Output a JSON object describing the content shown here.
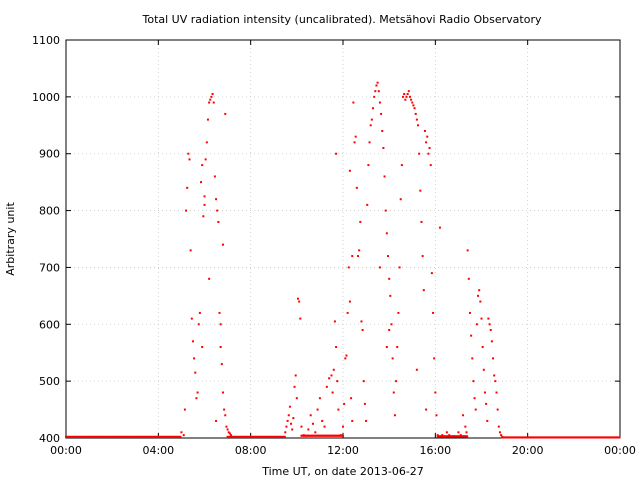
{
  "chart_data": {
    "type": "scatter",
    "title": "Total UV radiation intensity (uncalibrated). Metsähovi Radio Observatory",
    "xlabel": "Time UT, on date 2013-06-27",
    "ylabel": "Arbitrary unit",
    "xlim": [
      0,
      24
    ],
    "ylim": [
      400,
      1100
    ],
    "x_ticks": [
      0,
      4,
      8,
      12,
      16,
      20,
      24
    ],
    "x_tick_labels": [
      "00:00",
      "04:00",
      "08:00",
      "12:00",
      "16:00",
      "20:00",
      "00:00"
    ],
    "y_ticks": [
      400,
      500,
      600,
      700,
      800,
      900,
      1000,
      1100
    ],
    "y_tick_labels": [
      "400",
      "500",
      "600",
      "700",
      "800",
      "900",
      "1000",
      "1100"
    ],
    "grid": true,
    "marker_color": "#ff0000",
    "series": [
      {
        "points": [
          [
            5.0,
            410
          ],
          [
            5.1,
            405
          ],
          [
            5.15,
            450
          ],
          [
            5.2,
            800
          ],
          [
            5.25,
            840
          ],
          [
            5.3,
            900
          ],
          [
            5.35,
            890
          ],
          [
            5.4,
            730
          ],
          [
            5.45,
            610
          ],
          [
            5.5,
            570
          ],
          [
            5.55,
            540
          ],
          [
            5.6,
            515
          ],
          [
            5.65,
            470
          ],
          [
            5.7,
            480
          ],
          [
            5.75,
            600
          ],
          [
            5.8,
            620
          ],
          [
            5.85,
            850
          ],
          [
            5.9,
            880
          ],
          [
            5.95,
            790
          ],
          [
            6.0,
            810
          ],
          [
            6.05,
            890
          ],
          [
            6.1,
            920
          ],
          [
            6.15,
            960
          ],
          [
            6.2,
            990
          ],
          [
            6.25,
            995
          ],
          [
            6.3,
            1000
          ],
          [
            6.35,
            1005
          ],
          [
            6.4,
            990
          ],
          [
            6.45,
            860
          ],
          [
            6.5,
            820
          ],
          [
            6.55,
            800
          ],
          [
            6.6,
            780
          ],
          [
            6.65,
            620
          ],
          [
            6.7,
            560
          ],
          [
            6.75,
            530
          ],
          [
            6.8,
            480
          ],
          [
            6.85,
            450
          ],
          [
            6.9,
            440
          ],
          [
            6.95,
            420
          ],
          [
            7.0,
            415
          ],
          [
            7.05,
            410
          ],
          [
            7.1,
            408
          ],
          [
            7.15,
            405
          ],
          [
            6.2,
            680
          ],
          [
            6.0,
            825
          ],
          [
            5.9,
            560
          ],
          [
            6.8,
            740
          ],
          [
            6.9,
            970
          ],
          [
            6.7,
            600
          ],
          [
            6.5,
            430
          ],
          [
            9.5,
            410
          ],
          [
            9.55,
            420
          ],
          [
            9.6,
            430
          ],
          [
            9.65,
            440
          ],
          [
            9.7,
            455
          ],
          [
            9.75,
            425
          ],
          [
            9.8,
            415
          ],
          [
            9.85,
            435
          ],
          [
            9.9,
            490
          ],
          [
            9.95,
            510
          ],
          [
            10.0,
            470
          ],
          [
            10.05,
            645
          ],
          [
            10.1,
            640
          ],
          [
            10.15,
            610
          ],
          [
            10.2,
            420
          ],
          [
            10.3,
            405
          ],
          [
            10.5,
            415
          ],
          [
            10.6,
            440
          ],
          [
            10.7,
            425
          ],
          [
            10.8,
            410
          ],
          [
            10.9,
            450
          ],
          [
            11.0,
            470
          ],
          [
            11.1,
            430
          ],
          [
            11.2,
            420
          ],
          [
            11.3,
            490
          ],
          [
            11.4,
            505
          ],
          [
            11.5,
            510
          ],
          [
            11.55,
            480
          ],
          [
            11.6,
            520
          ],
          [
            11.65,
            605
          ],
          [
            11.7,
            560
          ],
          [
            11.75,
            500
          ],
          [
            11.8,
            450
          ],
          [
            11.9,
            405
          ],
          [
            12.0,
            420
          ],
          [
            12.05,
            460
          ],
          [
            12.1,
            540
          ],
          [
            12.15,
            545
          ],
          [
            12.2,
            620
          ],
          [
            12.25,
            700
          ],
          [
            12.3,
            640
          ],
          [
            12.35,
            470
          ],
          [
            12.4,
            430
          ],
          [
            12.45,
            990
          ],
          [
            12.5,
            920
          ],
          [
            12.55,
            930
          ],
          [
            12.6,
            840
          ],
          [
            12.65,
            720
          ],
          [
            12.7,
            730
          ],
          [
            12.75,
            780
          ],
          [
            12.8,
            605
          ],
          [
            12.85,
            590
          ],
          [
            12.9,
            500
          ],
          [
            12.95,
            460
          ],
          [
            13.0,
            430
          ],
          [
            13.05,
            810
          ],
          [
            13.1,
            880
          ],
          [
            13.15,
            920
          ],
          [
            13.2,
            950
          ],
          [
            13.25,
            960
          ],
          [
            13.3,
            980
          ],
          [
            13.35,
            1000
          ],
          [
            13.4,
            1010
          ],
          [
            13.45,
            1020
          ],
          [
            13.5,
            1025
          ],
          [
            13.55,
            1010
          ],
          [
            13.6,
            990
          ],
          [
            13.65,
            970
          ],
          [
            13.7,
            940
          ],
          [
            13.75,
            910
          ],
          [
            13.8,
            860
          ],
          [
            13.85,
            800
          ],
          [
            13.9,
            760
          ],
          [
            13.95,
            720
          ],
          [
            14.0,
            680
          ],
          [
            14.05,
            650
          ],
          [
            14.1,
            600
          ],
          [
            14.15,
            540
          ],
          [
            14.2,
            480
          ],
          [
            14.25,
            440
          ],
          [
            14.3,
            500
          ],
          [
            14.35,
            560
          ],
          [
            14.4,
            620
          ],
          [
            14.45,
            700
          ],
          [
            14.5,
            820
          ],
          [
            14.55,
            880
          ],
          [
            14.6,
            1000
          ],
          [
            14.65,
            1005
          ],
          [
            14.7,
            995
          ],
          [
            14.75,
            1000
          ],
          [
            14.8,
            1005
          ],
          [
            14.85,
            1010
          ],
          [
            14.9,
            1000
          ],
          [
            14.95,
            995
          ],
          [
            15.0,
            990
          ],
          [
            15.05,
            985
          ],
          [
            15.1,
            980
          ],
          [
            15.15,
            970
          ],
          [
            15.2,
            960
          ],
          [
            15.25,
            950
          ],
          [
            15.3,
            900
          ],
          [
            15.35,
            835
          ],
          [
            15.4,
            780
          ],
          [
            15.45,
            720
          ],
          [
            15.5,
            660
          ],
          [
            15.55,
            940
          ],
          [
            15.6,
            920
          ],
          [
            15.65,
            930
          ],
          [
            15.7,
            900
          ],
          [
            15.75,
            910
          ],
          [
            15.8,
            880
          ],
          [
            15.85,
            690
          ],
          [
            15.9,
            620
          ],
          [
            15.95,
            540
          ],
          [
            16.0,
            480
          ],
          [
            16.05,
            440
          ],
          [
            16.1,
            405
          ],
          [
            16.2,
            770
          ],
          [
            15.6,
            450
          ],
          [
            15.2,
            520
          ],
          [
            14.0,
            590
          ],
          [
            13.6,
            700
          ],
          [
            13.9,
            560
          ],
          [
            12.4,
            720
          ],
          [
            12.3,
            870
          ],
          [
            11.7,
            900
          ],
          [
            16.3,
            405
          ],
          [
            16.4,
            402
          ],
          [
            16.5,
            410
          ],
          [
            16.6,
            405
          ],
          [
            16.8,
            403
          ],
          [
            17.0,
            410
          ],
          [
            17.1,
            405
          ],
          [
            17.2,
            440
          ],
          [
            17.3,
            420
          ],
          [
            17.35,
            410
          ],
          [
            17.4,
            730
          ],
          [
            17.45,
            680
          ],
          [
            17.5,
            620
          ],
          [
            17.55,
            580
          ],
          [
            17.6,
            540
          ],
          [
            17.65,
            500
          ],
          [
            17.7,
            470
          ],
          [
            17.75,
            450
          ],
          [
            17.8,
            600
          ],
          [
            17.85,
            650
          ],
          [
            17.9,
            660
          ],
          [
            17.95,
            640
          ],
          [
            18.0,
            610
          ],
          [
            18.05,
            560
          ],
          [
            18.1,
            520
          ],
          [
            18.15,
            480
          ],
          [
            18.2,
            460
          ],
          [
            18.25,
            430
          ],
          [
            18.3,
            610
          ],
          [
            18.35,
            600
          ],
          [
            18.4,
            590
          ],
          [
            18.45,
            570
          ],
          [
            18.5,
            540
          ],
          [
            18.55,
            510
          ],
          [
            18.6,
            500
          ],
          [
            18.65,
            480
          ],
          [
            18.7,
            450
          ],
          [
            18.75,
            420
          ],
          [
            18.8,
            410
          ],
          [
            18.85,
            405
          ],
          [
            18.9,
            402
          ]
        ]
      }
    ],
    "baseline_segments": [
      {
        "x_start": 0,
        "x_end": 5.0,
        "y": 402
      },
      {
        "x_start": 7.0,
        "x_end": 9.5,
        "y": 402
      },
      {
        "x_start": 10.2,
        "x_end": 12.0,
        "y": 404
      },
      {
        "x_start": 16.1,
        "x_end": 17.4,
        "y": 403
      },
      {
        "x_start": 18.9,
        "x_end": 24,
        "y": 401
      }
    ]
  }
}
